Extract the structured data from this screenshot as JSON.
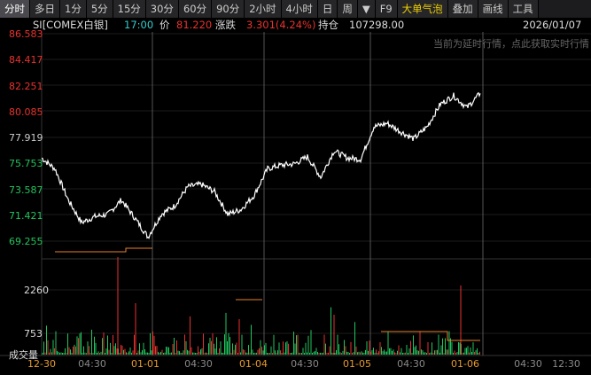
{
  "tabs": [
    {
      "label": "分时",
      "active": true
    },
    {
      "label": "多日"
    },
    {
      "label": "1分"
    },
    {
      "label": "5分"
    },
    {
      "label": "15分"
    },
    {
      "label": "30分"
    },
    {
      "label": "60分"
    },
    {
      "label": "90分"
    },
    {
      "label": "2小时"
    },
    {
      "label": "4小时"
    },
    {
      "label": "日"
    },
    {
      "label": "周"
    },
    {
      "label": "▼"
    },
    {
      "label": "F9"
    },
    {
      "label": "大单气泡",
      "highlight": true
    },
    {
      "label": "叠加"
    },
    {
      "label": "画线"
    },
    {
      "label": "工具"
    }
  ],
  "info": {
    "symbol": "SI[COMEX白银]",
    "time": "17:00",
    "price_label": "价",
    "price": "81.220",
    "change_label": "涨跌",
    "change": "3.301(4.24%)",
    "oi_label": "持仓",
    "oi": "107298.00",
    "date": "2026/01/07"
  },
  "notice": "当前为延时行情，点此获取实时行情",
  "volume_label": "成交量",
  "colors": {
    "up": "#e8322e",
    "down": "#22c55e",
    "line": "#ffffff",
    "oi": "#e8822c",
    "date": "#e89a2c",
    "grid": "#333"
  },
  "chart_data": {
    "type": "line",
    "y_ticks": [
      "86.583",
      "84.417",
      "82.251",
      "80.085",
      "77.919",
      "75.753",
      "73.587",
      "71.421",
      "69.255"
    ],
    "ylim": [
      69.255,
      86.583
    ],
    "x_ticks": [
      {
        "label": "12-30",
        "day": true
      },
      {
        "label": "04:30"
      },
      {
        "label": "01-01",
        "day": true
      },
      {
        "label": "04:30"
      },
      {
        "label": "01-04",
        "day": true
      },
      {
        "label": "04:30"
      },
      {
        "label": "01-05",
        "day": true
      },
      {
        "label": "04:30"
      },
      {
        "label": "01-06",
        "day": true
      },
      {
        "label": "04:30"
      },
      {
        "label": "12:30"
      }
    ],
    "price": [
      76.2,
      75.3,
      72.7,
      70.8,
      71.3,
      71.5,
      72.7,
      71.2,
      69.6,
      71.5,
      72.2,
      73.8,
      74.0,
      73.4,
      71.5,
      71.9,
      73.1,
      75.3,
      75.6,
      75.7,
      76.3,
      74.6,
      76.8,
      76.2,
      76.1,
      78.8,
      79.1,
      78.4,
      77.8,
      78.8,
      80.7,
      81.4,
      80.4,
      81.6
    ],
    "volume_ticks": [
      "2260",
      "753"
    ]
  }
}
